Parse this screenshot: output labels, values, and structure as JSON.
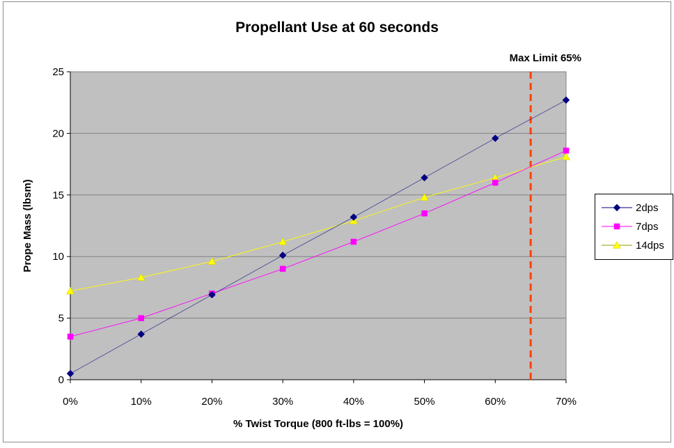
{
  "chart_data": {
    "type": "line",
    "title": "Propellant Use at 60 seconds",
    "xlabel": "% Twist Torque (800 ft-lbs = 100%)",
    "ylabel": "Prope Mass (lbsm)",
    "x": [
      0,
      10,
      20,
      30,
      40,
      50,
      60,
      70
    ],
    "x_tick_labels": [
      "0%",
      "10%",
      "20%",
      "30%",
      "40%",
      "50%",
      "60%",
      "70%"
    ],
    "y_tick_labels": [
      "0",
      "5",
      "10",
      "15",
      "20",
      "25"
    ],
    "xlim": [
      0,
      70
    ],
    "ylim": [
      0,
      25
    ],
    "grid": "horizontal",
    "plot_background": "#c0c0c0",
    "legend_position": "right",
    "series": [
      {
        "name": "2dps",
        "color": "#000080",
        "marker": "diamond",
        "values": [
          0.5,
          3.7,
          6.9,
          10.1,
          13.2,
          16.4,
          19.6,
          22.7
        ]
      },
      {
        "name": "7dps",
        "color": "#ff00ff",
        "marker": "square",
        "values": [
          3.5,
          5.0,
          7.0,
          9.0,
          11.2,
          13.5,
          16.0,
          18.6
        ]
      },
      {
        "name": "14dps",
        "color": "#ffff00",
        "marker": "triangle",
        "values": [
          7.2,
          8.3,
          9.6,
          11.2,
          12.9,
          14.8,
          16.4,
          18.1
        ]
      }
    ],
    "annotations": [
      {
        "text": "Max Limit 65%",
        "x": 65,
        "line_style": "dashed",
        "color": "#ff4000"
      }
    ]
  }
}
